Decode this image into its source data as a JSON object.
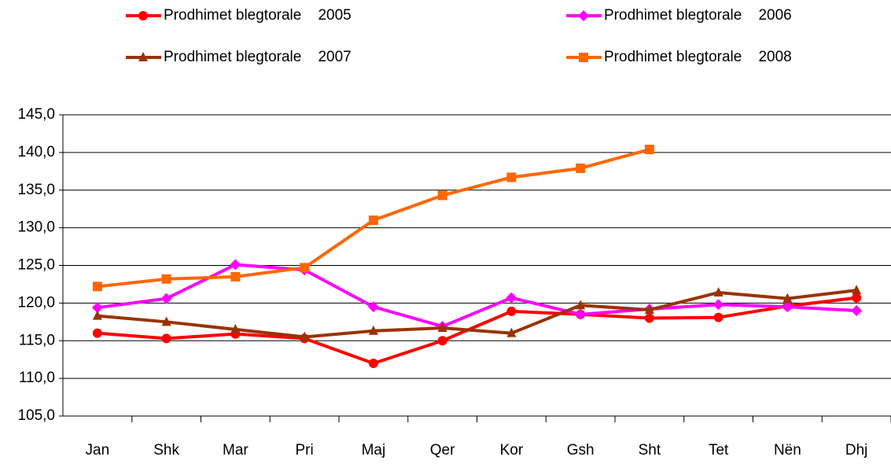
{
  "chart_data": {
    "type": "line",
    "categories": [
      "Jan",
      "Shk",
      "Mar",
      "Pri",
      "Maj",
      "Qer",
      "Kor",
      "Gsh",
      "Sht",
      "Tet",
      "Nën",
      "Dhj"
    ],
    "series": [
      {
        "name": "Prodhimet blegtorale    2005",
        "color": "#ff0000",
        "marker": "circle",
        "values": [
          116.0,
          115.3,
          115.9,
          115.3,
          112.0,
          115.0,
          118.9,
          118.5,
          118.0,
          118.1,
          119.6,
          120.7
        ]
      },
      {
        "name": "Prodhimet blegtorale    2006",
        "color": "#ff00ff",
        "marker": "diamond",
        "values": [
          119.4,
          120.6,
          125.1,
          124.4,
          119.5,
          116.9,
          120.7,
          118.5,
          119.2,
          119.8,
          119.5,
          119.0
        ]
      },
      {
        "name": "Prodhimet blegtorale    2007",
        "color": "#993300",
        "marker": "triangle",
        "values": [
          118.3,
          117.5,
          116.5,
          115.5,
          116.3,
          116.7,
          116.0,
          119.7,
          119.1,
          121.4,
          120.6,
          121.7
        ]
      },
      {
        "name": "Prodhimet blegtorale    2008",
        "color": "#ff6600",
        "marker": "square",
        "values": [
          122.2,
          123.2,
          123.5,
          124.7,
          131.0,
          134.3,
          136.7,
          137.9,
          140.4,
          null,
          null,
          null
        ]
      }
    ],
    "ylim": [
      105,
      145
    ],
    "yticks": [
      {
        "value": 105,
        "label": "105,0"
      },
      {
        "value": 110,
        "label": "110,0"
      },
      {
        "value": 115,
        "label": "115,0"
      },
      {
        "value": 120,
        "label": "120,0"
      },
      {
        "value": 125,
        "label": "125,0"
      },
      {
        "value": 130,
        "label": "130,0"
      },
      {
        "value": 135,
        "label": "135,0"
      },
      {
        "value": 140,
        "label": "140,0"
      },
      {
        "value": 145,
        "label": "145,0"
      }
    ],
    "grid": true
  }
}
